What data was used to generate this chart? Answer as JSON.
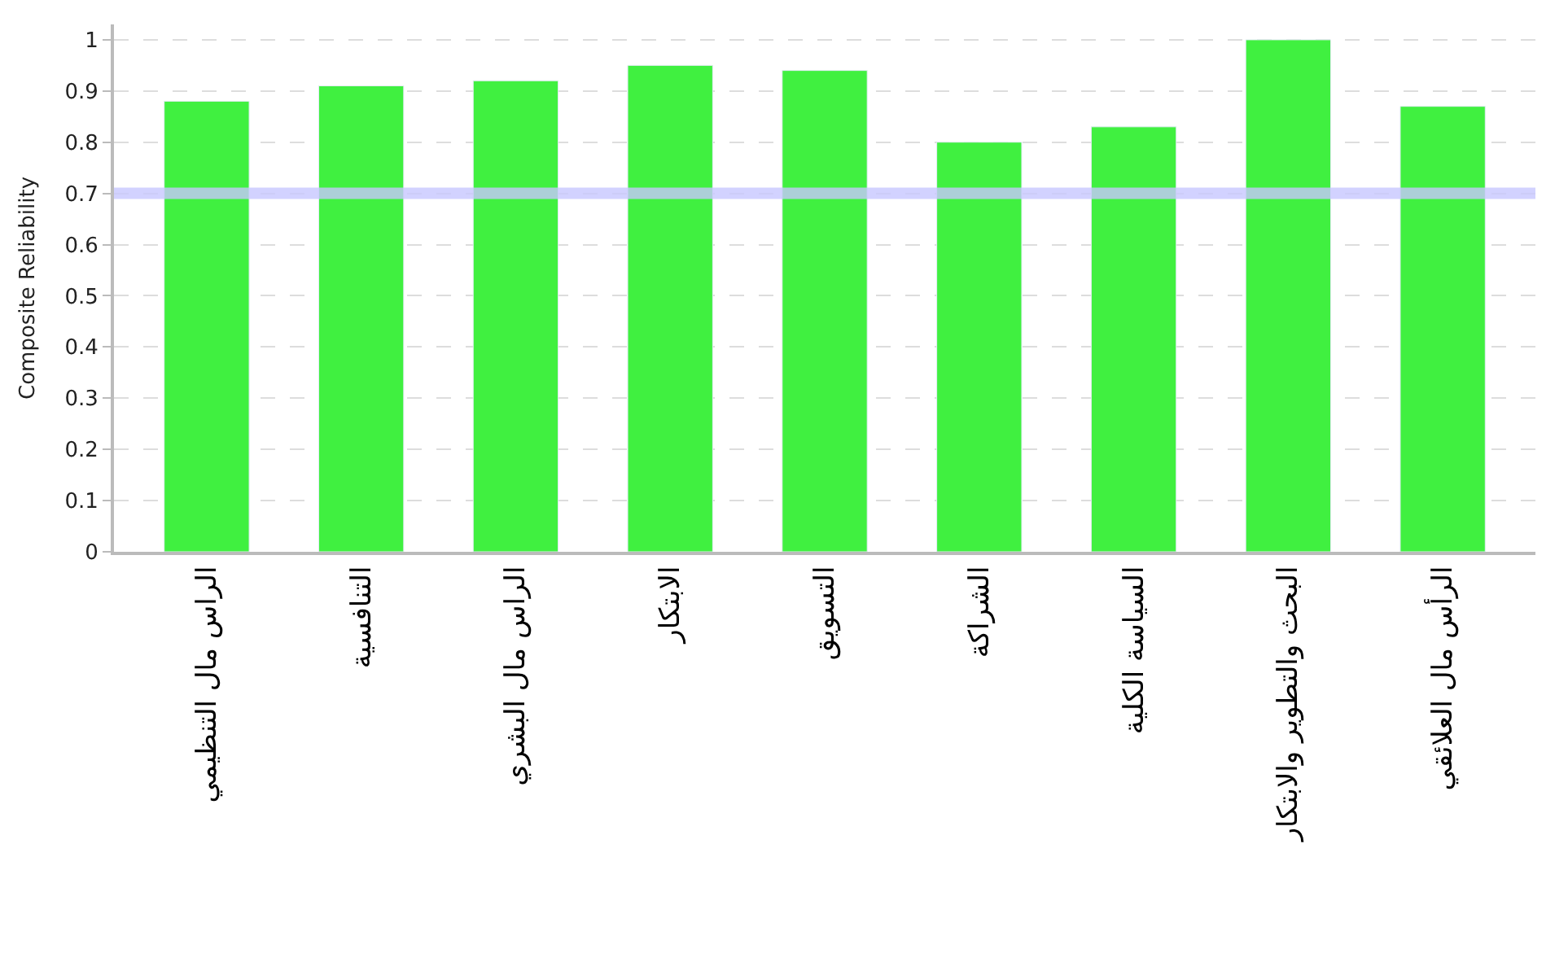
{
  "chart_data": {
    "type": "bar",
    "ylabel": "Composite Reliability",
    "categories": [
      "الراس مال التنظيمي",
      "التنافسية",
      "الراس مال البشري",
      "الابتكار",
      "التسويق",
      "الشراكة",
      "السياسة الكلية",
      "البحث والتطوير والابتكار",
      "الرأس مال العلائقي"
    ],
    "values": [
      0.88,
      0.91,
      0.92,
      0.95,
      0.94,
      0.8,
      0.83,
      1.0,
      0.87
    ],
    "color": "#40f040",
    "ylim": [
      0,
      1.03
    ],
    "yticks": [
      0,
      0.1,
      0.2,
      0.3,
      0.4,
      0.5,
      0.6,
      0.7,
      0.8,
      0.9,
      1
    ],
    "grid": "y",
    "ref_lines": [
      {
        "axis": "y",
        "value": 0.7,
        "color": "#c8c8ff"
      }
    ]
  }
}
